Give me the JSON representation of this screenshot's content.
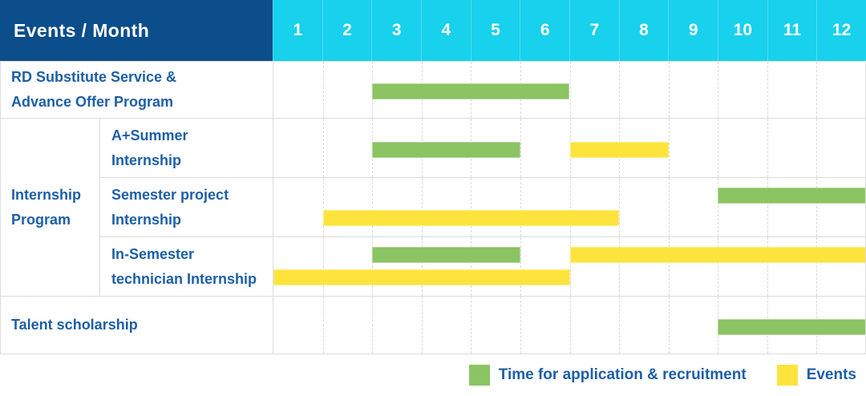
{
  "header": {
    "title": "Events / Month"
  },
  "colors": {
    "header_bg": "#0c4d8b",
    "months_bg": "#18d1ec",
    "header_text": "#ffffff",
    "label_text": "#1d5fa6",
    "recruitment": "#8bc463",
    "event": "#ffe33d",
    "grid": "#dcdcdc"
  },
  "chart_data": {
    "type": "bar",
    "variant": "gantt-schedule",
    "title": "Events / Month",
    "x_ticks": [
      "1",
      "2",
      "3",
      "4",
      "5",
      "6",
      "7",
      "8",
      "9",
      "10",
      "11",
      "12"
    ],
    "x_range": [
      1,
      12
    ],
    "grid": "dashed-vertical",
    "legend_position": "bottom-right",
    "groups": [
      {
        "label": "Internship\nProgram",
        "start_row": 1,
        "row_count": 3
      }
    ],
    "rows": [
      {
        "label": "RD Substitute Service &\nAdvance Offer Program",
        "group": null,
        "bars": [
          {
            "type": "recruitment",
            "start_month": 3,
            "end_month": 6,
            "band": "mid"
          }
        ]
      },
      {
        "label": "A+Summer\nInternship",
        "group": "Internship Program",
        "bars": [
          {
            "type": "recruitment",
            "start_month": 3,
            "end_month": 5,
            "band": "mid"
          },
          {
            "type": "event",
            "start_month": 7,
            "end_month": 8,
            "band": "mid"
          }
        ]
      },
      {
        "label": "Semester project\nInternship",
        "group": "Internship Program",
        "bars": [
          {
            "type": "recruitment",
            "start_month": 10,
            "end_month": 12,
            "band": "top"
          },
          {
            "type": "event",
            "start_month": 2,
            "end_month": 7,
            "band": "bottom"
          }
        ]
      },
      {
        "label": "In-Semester\ntechnician Internship",
        "group": "Internship Program",
        "bars": [
          {
            "type": "recruitment",
            "start_month": 3,
            "end_month": 5,
            "band": "top"
          },
          {
            "type": "event",
            "start_month": 7,
            "end_month": 12,
            "band": "top"
          },
          {
            "type": "event",
            "start_month": 1,
            "end_month": 6,
            "band": "bottom"
          }
        ]
      },
      {
        "label": "Talent scholarship",
        "group": null,
        "bars": [
          {
            "type": "recruitment",
            "start_month": 10,
            "end_month": 12,
            "band": "mid"
          }
        ]
      }
    ],
    "legend": [
      {
        "key": "recruitment",
        "label": "Time for application & recruitment",
        "color": "#8bc463"
      },
      {
        "key": "event",
        "label": "Events",
        "color": "#ffe33d"
      }
    ]
  }
}
